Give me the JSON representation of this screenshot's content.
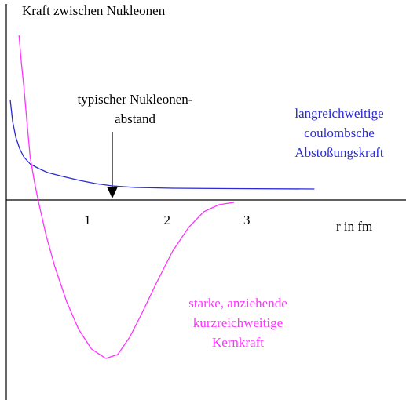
{
  "chart_data": {
    "type": "line",
    "title": "Kraft zwischen Nukleonen",
    "x_label": "r in fm",
    "xlim": [
      0,
      5
    ],
    "ylim": [
      -5,
      5
    ],
    "xticks": [
      1,
      2,
      3
    ],
    "yticks": [],
    "series": [
      {
        "color": "#2a2ad6",
        "x": [
          0.03,
          0.06,
          0.1,
          0.15,
          0.2,
          0.28,
          0.39,
          0.5,
          0.69,
          0.9,
          1.1,
          1.31,
          1.6,
          2.07,
          2.8,
          3.85
        ],
        "values": [
          2.56,
          2.0,
          1.6,
          1.3,
          1.1,
          0.92,
          0.8,
          0.7,
          0.6,
          0.5,
          0.42,
          0.36,
          0.32,
          0.3,
          0.29,
          0.28
        ]
      },
      {
        "color": "#ff33ff",
        "x": [
          0.14,
          0.17,
          0.2,
          0.24,
          0.28,
          0.33,
          0.38,
          0.48,
          0.59,
          0.74,
          0.89,
          1.05,
          1.23,
          1.38,
          1.53,
          1.68,
          1.87,
          2.07,
          2.27,
          2.46,
          2.65,
          2.84
        ],
        "values": [
          4.2,
          3.5,
          2.9,
          2.0,
          1.1,
          0.5,
          0.0,
          -0.9,
          -1.7,
          -2.6,
          -3.3,
          -3.8,
          -4.04,
          -3.94,
          -3.5,
          -2.9,
          -2.1,
          -1.3,
          -0.7,
          -0.3,
          -0.12,
          -0.06
        ]
      }
    ],
    "annotations": [
      {
        "lines": [
          "typischer Nukleonen-",
          "abstand"
        ],
        "color": "#000000"
      },
      {
        "lines": [
          "langreichweitige",
          "coulombsche",
          "Abstoßungskraft"
        ],
        "color": "#2a2ad6"
      },
      {
        "lines": [
          "starke, anziehende",
          "kurzreichweitige",
          "Kernkraft"
        ],
        "color": "#ff33ff"
      }
    ]
  }
}
